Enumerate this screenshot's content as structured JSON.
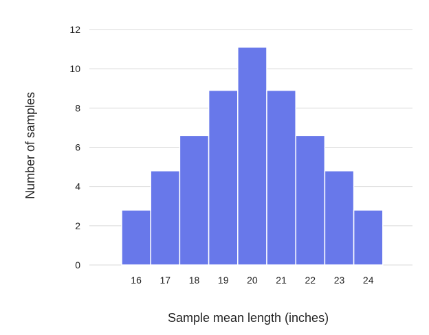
{
  "chart_data": {
    "type": "bar",
    "categories": [
      "16",
      "17",
      "18",
      "19",
      "20",
      "21",
      "22",
      "23",
      "24"
    ],
    "values": [
      2.8,
      4.8,
      6.6,
      8.9,
      11.1,
      8.9,
      6.6,
      4.8,
      2.8
    ],
    "xlabel": "Sample mean length (inches)",
    "ylabel": "Number of samples",
    "ylim": [
      0,
      12
    ],
    "yticks": [
      "0",
      "2",
      "4",
      "6",
      "8",
      "10",
      "12"
    ],
    "grid": true,
    "bar_color": "#6878ea",
    "grid_color": "#d9d9d9",
    "text_color": "#222222"
  }
}
